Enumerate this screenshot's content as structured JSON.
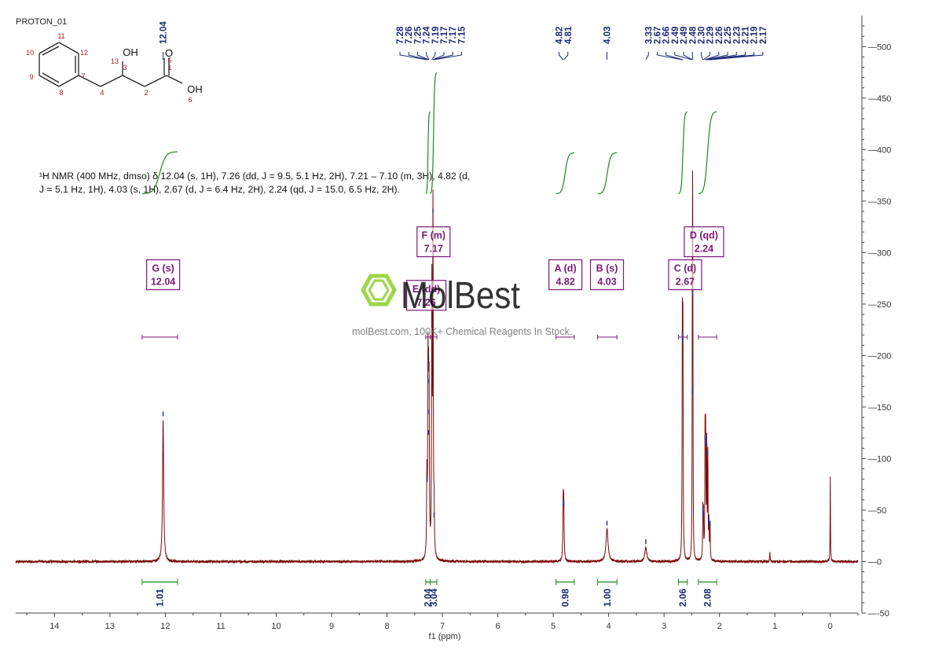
{
  "header": {
    "experiment": "PROTON_01"
  },
  "structure": {
    "atom_labels": [
      "1",
      "2",
      "3",
      "4",
      "5",
      "6",
      "7",
      "8",
      "9",
      "10",
      "11",
      "12",
      "13"
    ],
    "oh_label": "OH",
    "o_label": "O"
  },
  "description": {
    "line1": "¹H NMR (400 MHz, dmso) δ 12.04 (s, 1H), 7.26 (dd, J = 9.5, 5.1 Hz, 2H), 7.21 – 7.10 (m, 3H), 4.82 (d,",
    "line2": "J = 5.1 Hz, 1H), 4.03 (s, 1H), 2.67 (d, J = 6.4 Hz, 2H), 2.24 (qd, J = 15.0, 6.5 Hz, 2H)."
  },
  "watermark": {
    "brand": "MolBest",
    "tagline": "molBest.com, 100K+ Chemical Reagents In Stock."
  },
  "colors": {
    "spectrum": "#7a0a0a",
    "integral": "#1a8a1a",
    "peak_label": "#1c2a78",
    "multiplet": "#7a1a7a",
    "axis": "#444444"
  },
  "chart_data": {
    "type": "line",
    "xlabel": "f1 (ppm)",
    "x_reversed": true,
    "xlim": [
      14.7,
      -0.5
    ],
    "x_ticks": [
      14,
      13,
      12,
      11,
      10,
      9,
      8,
      7,
      6,
      5,
      4,
      3,
      2,
      1,
      0
    ],
    "ylim": [
      -50,
      530
    ],
    "y_ticks": [
      -50,
      0,
      50,
      100,
      150,
      200,
      250,
      300,
      350,
      400,
      450,
      500
    ],
    "peaks": [
      {
        "ppm": 12.04,
        "height": 138,
        "width": 0.012
      },
      {
        "ppm": 7.28,
        "height": 75,
        "width": 0.006
      },
      {
        "ppm": 7.26,
        "height": 170,
        "width": 0.006
      },
      {
        "ppm": 7.25,
        "height": 120,
        "width": 0.006
      },
      {
        "ppm": 7.24,
        "height": 140,
        "width": 0.006
      },
      {
        "ppm": 7.19,
        "height": 255,
        "width": 0.006
      },
      {
        "ppm": 7.17,
        "height": 335,
        "width": 0.006
      },
      {
        "ppm": 7.15,
        "height": 40,
        "width": 0.006
      },
      {
        "ppm": 4.82,
        "height": 52,
        "width": 0.007
      },
      {
        "ppm": 4.81,
        "height": 50,
        "width": 0.007
      },
      {
        "ppm": 4.03,
        "height": 32,
        "width": 0.022
      },
      {
        "ppm": 3.33,
        "height": 14,
        "width": 0.02
      },
      {
        "ppm": 2.67,
        "height": 215,
        "width": 0.005
      },
      {
        "ppm": 2.66,
        "height": 210,
        "width": 0.005
      },
      {
        "ppm": 2.49,
        "height": 160,
        "width": 0.004
      },
      {
        "ppm": 2.485,
        "height": 255,
        "width": 0.004
      },
      {
        "ppm": 2.48,
        "height": 160,
        "width": 0.004
      },
      {
        "ppm": 2.3,
        "height": 45,
        "width": 0.005
      },
      {
        "ppm": 2.29,
        "height": 40,
        "width": 0.005
      },
      {
        "ppm": 2.26,
        "height": 115,
        "width": 0.005
      },
      {
        "ppm": 2.25,
        "height": 112,
        "width": 0.005
      },
      {
        "ppm": 2.23,
        "height": 108,
        "width": 0.005
      },
      {
        "ppm": 2.21,
        "height": 100,
        "width": 0.005
      },
      {
        "ppm": 2.19,
        "height": 35,
        "width": 0.005
      },
      {
        "ppm": 2.17,
        "height": 32,
        "width": 0.005
      },
      {
        "ppm": 1.09,
        "height": 9,
        "width": 0.006
      },
      {
        "ppm": 0.0,
        "height": 82,
        "width": 0.004
      }
    ],
    "peak_labels": [
      {
        "group": "12.04",
        "anchor": 12.04,
        "labels": [
          "12.04"
        ]
      },
      {
        "group": "aromatic",
        "anchor": 7.21,
        "labels": [
          "7.28",
          "7.26",
          "7.25",
          "7.24",
          "7.19",
          "7.17",
          "7.17",
          "7.15"
        ]
      },
      {
        "group": "4.82",
        "anchor": 4.815,
        "labels": [
          "4.82",
          "4.81"
        ]
      },
      {
        "group": "4.03",
        "anchor": 4.03,
        "labels": [
          "4.03"
        ]
      },
      {
        "group": "aliphatic",
        "anchor": 2.25,
        "labels": [
          "3.33",
          "2.67",
          "2.66",
          "2.49",
          "2.49",
          "2.48",
          "2.30",
          "2.29",
          "2.26",
          "2.25",
          "2.23",
          "2.21",
          "2.19",
          "2.17"
        ]
      }
    ],
    "integrals": [
      {
        "from": 12.42,
        "to": 11.78,
        "value": "1.01",
        "curve_low": 357,
        "curve_high": 398
      },
      {
        "from": 7.3,
        "to": 7.22,
        "value": "2.04",
        "curve_low": 357,
        "curve_high": 437
      },
      {
        "from": 7.22,
        "to": 7.1,
        "value": "3.04",
        "curve_low": 357,
        "curve_high": 475
      },
      {
        "from": 4.95,
        "to": 4.62,
        "value": "0.98",
        "curve_low": 357,
        "curve_high": 397
      },
      {
        "from": 4.2,
        "to": 3.85,
        "value": "1.00",
        "curve_low": 357,
        "curve_high": 397
      },
      {
        "from": 2.74,
        "to": 2.58,
        "value": "2.06",
        "curve_low": 357,
        "curve_high": 437
      },
      {
        "from": 2.38,
        "to": 2.05,
        "value": "2.08",
        "curve_low": 357,
        "curve_high": 437
      }
    ],
    "multiplets": [
      {
        "label": "G (s)",
        "shift": "12.04",
        "box_x": 12.04,
        "box_y": 264,
        "range": [
          12.42,
          11.78
        ]
      },
      {
        "label": "F (m)",
        "shift": "7.17",
        "box_x": 7.16,
        "box_y": 296,
        "range": [
          7.22,
          7.1
        ]
      },
      {
        "label": "E (dd)",
        "shift": "7.26",
        "box_x": 7.29,
        "box_y": 244,
        "range": [
          7.3,
          7.22
        ]
      },
      {
        "label": "A (d)",
        "shift": "4.82",
        "box_x": 4.78,
        "box_y": 264,
        "range": [
          4.95,
          4.62
        ]
      },
      {
        "label": "B (s)",
        "shift": "4.03",
        "box_x": 4.03,
        "box_y": 264,
        "range": [
          4.2,
          3.85
        ]
      },
      {
        "label": "C (d)",
        "shift": "2.67",
        "box_x": 2.62,
        "box_y": 264,
        "range": [
          2.74,
          2.58
        ]
      },
      {
        "label": "D (qd)",
        "shift": "2.24",
        "box_x": 2.28,
        "box_y": 296,
        "range": [
          2.38,
          2.05
        ]
      }
    ]
  }
}
